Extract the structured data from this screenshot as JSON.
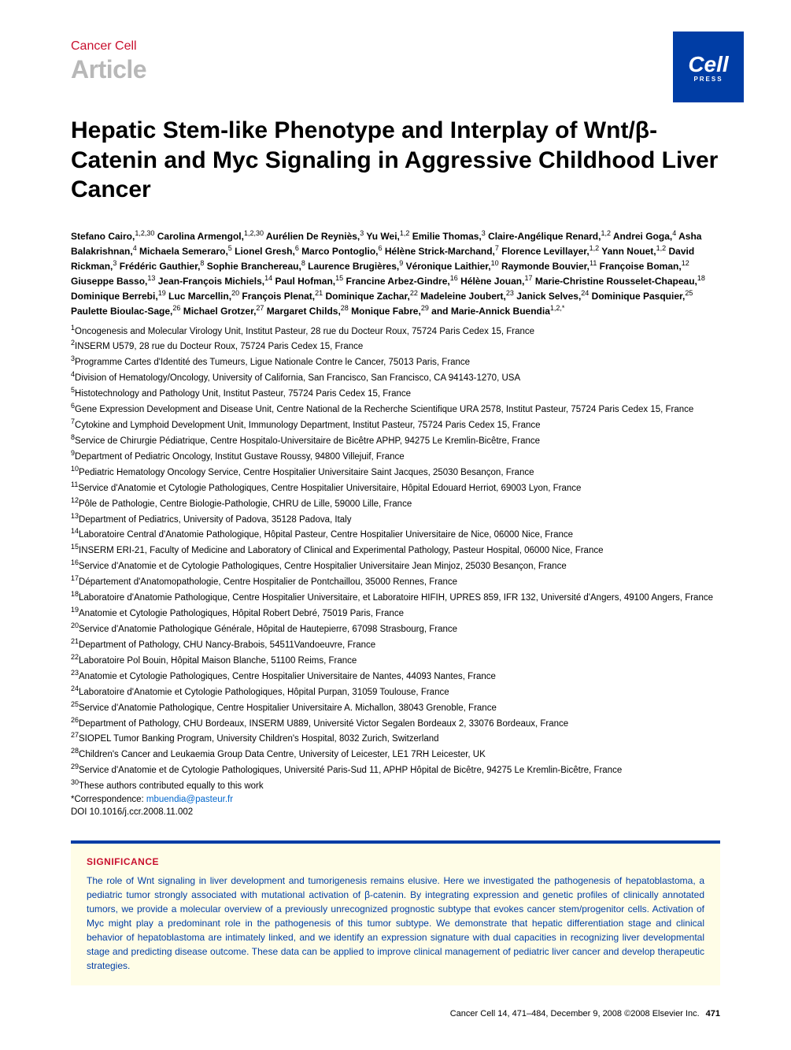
{
  "header": {
    "journal": "Cancer Cell",
    "article_type": "Article",
    "logo_main": "Cell",
    "logo_sub": "PRESS"
  },
  "title": "Hepatic Stem-like Phenotype and Interplay of Wnt/β-Catenin and Myc Signaling in Aggressive Childhood Liver Cancer",
  "authors_html": "Stefano Cairo,<sup>1,2,30</sup> Carolina Armengol,<sup>1,2,30</sup> Aurélien De Reyniès,<sup>3</sup> Yu Wei,<sup>1,2</sup> Emilie Thomas,<sup>3</sup> Claire-Angélique Renard,<sup>1,2</sup> Andrei Goga,<sup>4</sup> Asha Balakrishnan,<sup>4</sup> Michaela Semeraro,<sup>5</sup> Lionel Gresh,<sup>6</sup> Marco Pontoglio,<sup>6</sup> Hélène Strick-Marchand,<sup>7</sup> Florence Levillayer,<sup>1,2</sup> Yann Nouet,<sup>1,2</sup> David Rickman,<sup>3</sup> Frédéric Gauthier,<sup>8</sup> Sophie Branchereau,<sup>8</sup> Laurence Brugières,<sup>9</sup> Véronique Laithier,<sup>10</sup> Raymonde Bouvier,<sup>11</sup> Françoise Boman,<sup>12</sup> Giuseppe Basso,<sup>13</sup> Jean-François Michiels,<sup>14</sup> Paul Hofman,<sup>15</sup> Francine Arbez-Gindre,<sup>16</sup> Hélène Jouan,<sup>17</sup> Marie-Christine Rousselet-Chapeau,<sup>18</sup> Dominique Berrebi,<sup>19</sup> Luc Marcellin,<sup>20</sup> François Plenat,<sup>21</sup> Dominique Zachar,<sup>22</sup> Madeleine Joubert,<sup>23</sup> Janick Selves,<sup>24</sup> Dominique Pasquier,<sup>25</sup> Paulette Bioulac-Sage,<sup>26</sup> Michael Grotzer,<sup>27</sup> Margaret Childs,<sup>28</sup> Monique Fabre,<sup>29</sup> and Marie-Annick Buendia<sup>1,2,*</sup>",
  "affiliations": [
    "<sup>1</sup>Oncogenesis and Molecular Virology Unit, Institut Pasteur, 28 rue du Docteur Roux, 75724 Paris Cedex 15, France",
    "<sup>2</sup>INSERM U579, 28 rue du Docteur Roux, 75724 Paris Cedex 15, France",
    "<sup>3</sup>Programme Cartes d'Identité des Tumeurs, Ligue Nationale Contre le Cancer, 75013 Paris, France",
    "<sup>4</sup>Division of Hematology/Oncology, University of California, San Francisco, San Francisco, CA 94143-1270, USA",
    "<sup>5</sup>Histotechnology and Pathology Unit, Institut Pasteur, 75724 Paris Cedex 15, France",
    "<sup>6</sup>Gene Expression Development and Disease Unit, Centre National de la Recherche Scientifique URA 2578, Institut Pasteur, 75724 Paris Cedex 15, France",
    "<sup>7</sup>Cytokine and Lymphoid Development Unit, Immunology Department, Institut Pasteur, 75724 Paris Cedex 15, France",
    "<sup>8</sup>Service de Chirurgie Pédiatrique, Centre Hospitalo-Universitaire de Bicêtre APHP, 94275 Le Kremlin-Bicêtre, France",
    "<sup>9</sup>Department of Pediatric Oncology, Institut Gustave Roussy, 94800 Villejuif, France",
    "<sup>10</sup>Pediatric Hematology Oncology Service, Centre Hospitalier Universitaire Saint Jacques, 25030 Besançon, France",
    "<sup>11</sup>Service d'Anatomie et Cytologie Pathologiques, Centre Hospitalier Universitaire, Hôpital Edouard Herriot, 69003 Lyon, France",
    "<sup>12</sup>Pôle de Pathologie, Centre Biologie-Pathologie, CHRU de Lille, 59000 Lille, France",
    "<sup>13</sup>Department of Pediatrics, University of Padova, 35128 Padova, Italy",
    "<sup>14</sup>Laboratoire Central d'Anatomie Pathologique, Hôpital Pasteur, Centre Hospitalier Universitaire de Nice, 06000 Nice, France",
    "<sup>15</sup>INSERM ERI-21, Faculty of Medicine and Laboratory of Clinical and Experimental Pathology, Pasteur Hospital, 06000 Nice, France",
    "<sup>16</sup>Service d'Anatomie et de Cytologie Pathologiques, Centre Hospitalier Universitaire Jean Minjoz, 25030 Besançon, France",
    "<sup>17</sup>Département d'Anatomopathologie, Centre Hospitalier de Pontchaillou, 35000 Rennes, France",
    "<sup>18</sup>Laboratoire d'Anatomie Pathologique, Centre Hospitalier Universitaire, et Laboratoire HIFIH, UPRES 859, IFR 132, Université d'Angers, 49100 Angers, France",
    "<sup>19</sup>Anatomie et Cytologie Pathologiques, Hôpital Robert Debré, 75019 Paris, France",
    "<sup>20</sup>Service d'Anatomie Pathologique Générale, Hôpital de Hautepierre, 67098 Strasbourg, France",
    "<sup>21</sup>Department of Pathology, CHU Nancy-Brabois, 54511Vandoeuvre, France",
    "<sup>22</sup>Laboratoire Pol Bouin, Hôpital Maison Blanche, 51100 Reims, France",
    "<sup>23</sup>Anatomie et Cytologie Pathologiques, Centre Hospitalier Universitaire de Nantes, 44093 Nantes, France",
    "<sup>24</sup>Laboratoire d'Anatomie et Cytologie Pathologiques, Hôpital Purpan, 31059 Toulouse, France",
    "<sup>25</sup>Service d'Anatomie Pathologique, Centre Hospitalier Universitaire A. Michallon, 38043 Grenoble, France",
    "<sup>26</sup>Department of Pathology, CHU Bordeaux, INSERM U889, Université Victor Segalen Bordeaux 2, 33076 Bordeaux, France",
    "<sup>27</sup>SIOPEL Tumor Banking Program, University Children's Hospital, 8032 Zurich, Switzerland",
    "<sup>28</sup>Children's Cancer and Leukaemia Group Data Centre, University of Leicester, LE1 7RH Leicester, UK",
    "<sup>29</sup>Service d'Anatomie et de Cytologie Pathologiques, Université Paris-Sud 11, APHP Hôpital de Bicêtre, 94275 Le Kremlin-Bicêtre, France",
    "<sup>30</sup>These authors contributed equally to this work"
  ],
  "correspondence_label": "*Correspondence: ",
  "correspondence_email": "mbuendia@pasteur.fr",
  "doi": "DOI 10.1016/j.ccr.2008.11.002",
  "significance": {
    "title": "SIGNIFICANCE",
    "text": "The role of Wnt signaling in liver development and tumorigenesis remains elusive. Here we investigated the pathogenesis of hepatoblastoma, a pediatric tumor strongly associated with mutational activation of β-catenin. By integrating expression and genetic profiles of clinically annotated tumors, we provide a molecular overview of a previously unrecognized prognostic subtype that evokes cancer stem/progenitor cells. Activation of Myc might play a predominant role in the pathogenesis of this tumor subtype. We demonstrate that hepatic differentiation stage and clinical behavior of hepatoblastoma are intimately linked, and we identify an expression signature with dual capacities in recognizing liver developmental stage and predicting disease outcome. These data can be applied to improve clinical management of pediatric liver cancer and develop therapeutic strategies."
  },
  "footer": {
    "citation": "Cancer Cell 14, 471–484, December 9, 2008 ©2008 Elsevier Inc.",
    "page": "471"
  },
  "colors": {
    "red": "#c8102e",
    "blue": "#003da5",
    "gray": "#b8b8b8",
    "box_bg": "#fffde7",
    "link": "#0066cc"
  }
}
